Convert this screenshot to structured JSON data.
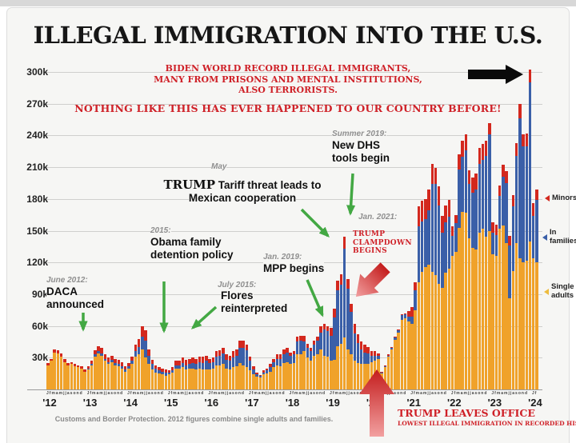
{
  "title": "ILLEGAL IMMIGRATION INTO THE U.S.",
  "red_banner": {
    "lines": [
      "BIDEN WORLD RECORD ILLEGAL IMMIGRANTS,",
      "MANY FROM PRISONS AND MENTAL INSTITUTIONS,",
      "ALSO TERRORISTS."
    ]
  },
  "warning": "NOTHING LIKE THIS HAS EVER HAPPENED TO OUR COUNTRY BEFORE!",
  "annotations": {
    "daca": {
      "date": "June 2012:",
      "line1": "DACA",
      "line2": "announced"
    },
    "obama": {
      "date": "2015:",
      "line1": "Obama family",
      "line2": "detention policy"
    },
    "flores": {
      "date": "July 2015:",
      "line1": "Flores",
      "line2": "reinterpreted"
    },
    "tariff": {
      "date": "May",
      "emph": "TRUMP",
      "line1": " Tariff threat leads to",
      "line2": "Mexican cooperation"
    },
    "mpp": {
      "date": "Jan. 2019:",
      "line1": "MPP begins"
    },
    "dhs": {
      "date": "Summer 2019:",
      "line1": "New DHS",
      "line2": "tools begin"
    },
    "clampdown": {
      "date": "Jan. 2021:",
      "line1": "TRUMP",
      "line2": "CLAMPDOWN",
      "line3": "BEGINS"
    }
  },
  "trump_leaves": {
    "line1": "TRUMP LEAVES OFFICE",
    "line2": "LOWEST ILLEGAL IMMIGRATION IN RECORDED HISTORY!"
  },
  "legend": {
    "minors": "Minors",
    "families_1": "In",
    "families_2": "families",
    "single_1": "Single",
    "single_2": "adults"
  },
  "footnote": "Customs and Border Protection. 2012 figures combine single adults and families.",
  "colors": {
    "single_adults": "#f0a22a",
    "in_families": "#3a5fa8",
    "minors": "#d3281e",
    "green_arrow": "#43a843",
    "red_text": "#cf2128",
    "red_arrow_dark": "#c41d1d",
    "red_arrow_light": "#f2a0a0",
    "black_arrow": "#0a0a0a"
  },
  "chart_data": {
    "type": "bar",
    "stacked": true,
    "title": "ILLEGAL IMMIGRATION INTO THE U.S.",
    "values_unit": "thousands of apprehensions per month",
    "x_unit": "month",
    "x_start": "2012-01",
    "x_end": "2024-02",
    "year_labels": [
      "'12",
      "'13",
      "'14",
      "'15",
      "'16",
      "'17",
      "'18",
      "'19",
      "'20",
      "'21",
      "'22",
      "'23",
      "'24"
    ],
    "month_tick_pattern": "Jfmamjjasond",
    "y_tick_labels": [
      "30k",
      "60k",
      "90k",
      "120k",
      "150k",
      "180k",
      "210k",
      "240k",
      "270k",
      "300k"
    ],
    "ylim_k": [
      0,
      310
    ],
    "grid": true,
    "legend_position": "right",
    "source": "Customs and Border Protection",
    "series": [
      {
        "name": "Single adults",
        "color": "#f0a22a",
        "values": [
          23,
          27,
          35,
          34,
          31,
          26,
          23,
          24,
          22,
          21,
          20,
          17,
          19,
          23,
          31,
          34,
          32,
          27,
          24,
          26,
          23,
          22,
          20,
          17,
          20,
          24,
          31,
          33,
          38,
          30,
          24,
          19,
          16,
          15,
          14,
          13,
          14,
          16,
          20,
          20,
          21,
          19,
          20,
          20,
          19,
          20,
          19,
          19,
          19,
          20,
          23,
          23,
          24,
          20,
          19,
          21,
          22,
          25,
          23,
          21,
          18,
          14,
          12,
          11,
          14,
          15,
          17,
          21,
          23,
          22,
          25,
          26,
          24,
          25,
          33,
          33,
          36,
          30,
          27,
          32,
          33,
          38,
          32,
          31,
          27,
          28,
          41,
          43,
          49,
          38,
          33,
          27,
          25,
          24,
          24,
          24,
          26,
          27,
          29,
          15,
          21,
          31,
          38,
          47,
          54,
          66,
          67,
          64,
          62,
          75,
          101,
          111,
          116,
          118,
          111,
          108,
          100,
          96,
          110,
          114,
          126,
          130,
          153,
          168,
          167,
          143,
          134,
          132,
          148,
          152,
          144,
          150,
          128,
          126,
          152,
          155,
          138,
          86,
          112,
          138,
          124,
          120,
          122,
          140,
          124,
          120
        ]
      },
      {
        "name": "In families",
        "color": "#3a5fa8",
        "values": [
          0,
          0,
          0,
          0,
          0,
          0,
          0,
          0,
          0,
          0,
          0,
          0,
          1,
          1,
          2,
          2,
          2,
          2,
          2,
          2,
          2,
          2,
          2,
          2,
          2,
          3,
          5,
          7,
          12,
          16,
          8,
          5,
          4,
          3,
          3,
          3,
          2,
          2,
          3,
          3,
          4,
          4,
          4,
          5,
          5,
          6,
          6,
          8,
          6,
          6,
          8,
          9,
          10,
          8,
          8,
          9,
          10,
          14,
          16,
          16,
          9,
          5,
          2,
          2,
          2,
          3,
          4,
          5,
          6,
          7,
          8,
          9,
          8,
          8,
          12,
          13,
          9,
          9,
          9,
          10,
          13,
          16,
          25,
          24,
          24,
          40,
          53,
          56,
          84,
          57,
          40,
          26,
          19,
          14,
          11,
          10,
          6,
          5,
          3,
          1,
          1,
          1,
          1,
          2,
          2,
          4,
          4,
          5,
          7,
          19,
          53,
          48,
          45,
          51,
          83,
          86,
          74,
          52,
          48,
          49,
          19,
          27,
          55,
          52,
          59,
          51,
          52,
          57,
          65,
          65,
          77,
          91,
          20,
          20,
          31,
          46,
          57,
          50,
          61,
          83,
          132,
          110,
          108,
          150,
          40,
          59
        ]
      },
      {
        "name": "Minors",
        "color": "#d3281e",
        "values": [
          2,
          2,
          3,
          3,
          3,
          3,
          2,
          2,
          2,
          2,
          2,
          2,
          2,
          3,
          4,
          5,
          5,
          4,
          4,
          4,
          4,
          4,
          4,
          3,
          3,
          4,
          6,
          8,
          10,
          10,
          6,
          4,
          3,
          3,
          3,
          3,
          2,
          3,
          4,
          4,
          5,
          5,
          5,
          5,
          5,
          5,
          6,
          5,
          4,
          4,
          5,
          5,
          5,
          5,
          5,
          6,
          6,
          7,
          7,
          5,
          4,
          3,
          2,
          1,
          2,
          2,
          3,
          3,
          4,
          4,
          5,
          4,
          3,
          3,
          5,
          5,
          6,
          4,
          3,
          4,
          4,
          6,
          5,
          5,
          7,
          8,
          9,
          10,
          11,
          9,
          8,
          9,
          8,
          7,
          7,
          6,
          4,
          4,
          2,
          1,
          1,
          1,
          1,
          1,
          1,
          1,
          1,
          5,
          9,
          7,
          19,
          19,
          19,
          20,
          19,
          15,
          18,
          16,
          16,
          16,
          9,
          8,
          14,
          15,
          15,
          13,
          14,
          15,
          15,
          15,
          14,
          11,
          10,
          10,
          10,
          11,
          11,
          9,
          11,
          12,
          14,
          11,
          12,
          12,
          12,
          10
        ]
      }
    ]
  }
}
